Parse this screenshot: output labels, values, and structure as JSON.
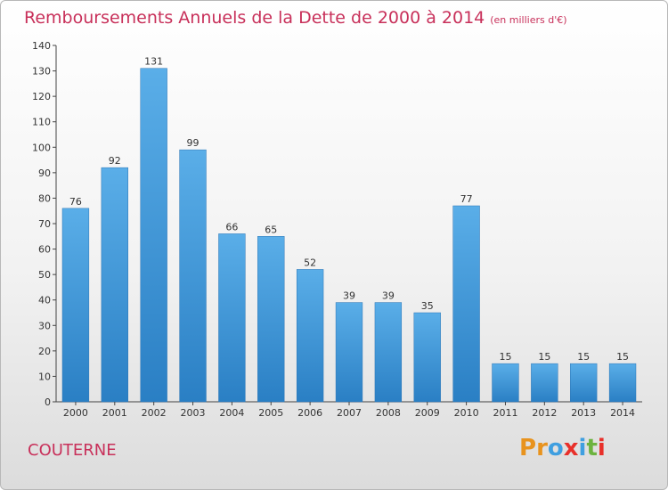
{
  "header": {
    "title": "Remboursements Annuels de la Dette de 2000 à 2014",
    "unit": "(en milliers d'€)"
  },
  "footer": {
    "commune": "COUTERNE",
    "logo_text": "Proxiti"
  },
  "colors": {
    "title": "#c8305a",
    "bar_top": "#5aaee8",
    "bar_bottom": "#2a7fc4",
    "logo": [
      "#e8931e",
      "#e8931e",
      "#3f9fe0",
      "#e8302a",
      "#3f9fe0",
      "#6cb33f",
      "#e8302a"
    ]
  },
  "chart_data": {
    "type": "bar",
    "title": "Remboursements Annuels de la Dette de 2000 à 2014",
    "xlabel": "",
    "ylabel": "",
    "categories": [
      "2000",
      "2001",
      "2002",
      "2003",
      "2004",
      "2005",
      "2006",
      "2007",
      "2008",
      "2009",
      "2010",
      "2011",
      "2012",
      "2013",
      "2014"
    ],
    "values": [
      76,
      92,
      131,
      99,
      66,
      65,
      52,
      39,
      39,
      35,
      77,
      15,
      15,
      15,
      15
    ],
    "ylim": [
      0,
      140
    ],
    "yticks": [
      0,
      10,
      20,
      30,
      40,
      50,
      60,
      70,
      80,
      90,
      100,
      110,
      120,
      130,
      140
    ],
    "grid": false,
    "legend": "none"
  }
}
